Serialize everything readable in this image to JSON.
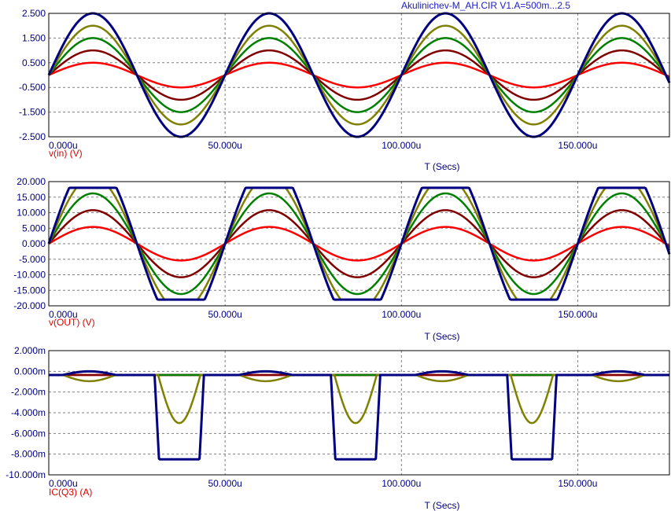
{
  "header": {
    "title": "Akulinichev-M_AH.CIR V1.A=500m...2.5"
  },
  "colors": {
    "axis_text": "#000080",
    "ylabel_text": "#e00000",
    "grid": "#808080",
    "frame": "#000000"
  },
  "chart_data": [
    {
      "type": "line",
      "id": "vin",
      "xlabel": "T (Secs)",
      "ylabel": "v(in) (V)",
      "xlim": [
        0,
        176
      ],
      "ylim": [
        -2.5,
        2.5
      ],
      "xticks": [
        0,
        50,
        100,
        150
      ],
      "xtick_labels": [
        "0.000u",
        "50.000u",
        "100.000u",
        "150.000u"
      ],
      "yticks": [
        2.5,
        1.5,
        0.5,
        -0.5,
        -1.5,
        -2.5
      ],
      "ytick_labels": [
        "2.500",
        "1.500",
        "0.500",
        "-0.500",
        "-1.500",
        "-2.500"
      ],
      "grid": true,
      "signal": {
        "shape": "sine",
        "period": 50,
        "time_unit": "u"
      },
      "series": [
        {
          "amplitude": 0.5,
          "color": "#ff0000"
        },
        {
          "amplitude": 1.0,
          "color": "#800000"
        },
        {
          "amplitude": 1.5,
          "color": "#008000"
        },
        {
          "amplitude": 2.0,
          "color": "#808000"
        },
        {
          "amplitude": 2.5,
          "color": "#000080"
        }
      ]
    },
    {
      "type": "line",
      "id": "vout",
      "xlabel": "T (Secs)",
      "ylabel": "v(OUT) (V)",
      "xlim": [
        0,
        176
      ],
      "ylim": [
        -20,
        20
      ],
      "xticks": [
        0,
        50,
        100,
        150
      ],
      "xtick_labels": [
        "0.000u",
        "50.000u",
        "100.000u",
        "150.000u"
      ],
      "yticks": [
        20,
        15,
        10,
        5,
        0,
        -5,
        -10,
        -15,
        -20
      ],
      "ytick_labels": [
        "20.000",
        "15.000",
        "10.000",
        "5.000",
        "0.000",
        "-5.000",
        "-10.000",
        "-15.000",
        "-20.000"
      ],
      "grid": true,
      "signal": {
        "shape": "clipped-sine",
        "period": 50,
        "clip_high": 18.0,
        "clip_low": -18.0
      },
      "series": [
        {
          "amplitude": 5.4,
          "color": "#ff0000"
        },
        {
          "amplitude": 10.8,
          "color": "#800000"
        },
        {
          "amplitude": 16.2,
          "color": "#008000"
        },
        {
          "amplitude": 21.6,
          "color": "#808000"
        },
        {
          "amplitude": 27.0,
          "color": "#000080"
        }
      ]
    },
    {
      "type": "line",
      "id": "icq3",
      "xlabel": "T (Secs)",
      "ylabel": "IC(Q3) (A)",
      "xlim": [
        0,
        176
      ],
      "ylim": [
        -10,
        2
      ],
      "xticks": [
        0,
        50,
        100,
        150
      ],
      "xtick_labels": [
        "0.000u",
        "50.000u",
        "100.000u",
        "150.000u"
      ],
      "yticks": [
        2,
        0,
        -2,
        -4,
        -6,
        -8,
        -10
      ],
      "ytick_labels": [
        "2.000m",
        "0.000m",
        "-2.000m",
        "-4.000m",
        "-6.000m",
        "-8.000m",
        "-10.000m"
      ],
      "grid": true,
      "signal": {
        "shape": "collector-current",
        "period": 50,
        "baseline": -0.35
      },
      "series": [
        {
          "color": "#ff0000",
          "pulse_depth": 0,
          "pulse_start": 0,
          "pulse_end": 0,
          "bump": 0
        },
        {
          "color": "#800000",
          "pulse_depth": 0,
          "pulse_start": 0,
          "pulse_end": 0,
          "bump": 0
        },
        {
          "color": "#008000",
          "pulse_depth": 0,
          "pulse_start": 0,
          "pulse_end": 0,
          "bump": 0.1
        },
        {
          "color": "#808000",
          "pulse_depth": -5.0,
          "pulse_start": 31,
          "pulse_end": 43,
          "bump": -0.2
        },
        {
          "color": "#000080",
          "pulse_depth": -8.5,
          "pulse_start": 30,
          "pulse_end": 44,
          "bump": 0.1
        }
      ]
    }
  ]
}
